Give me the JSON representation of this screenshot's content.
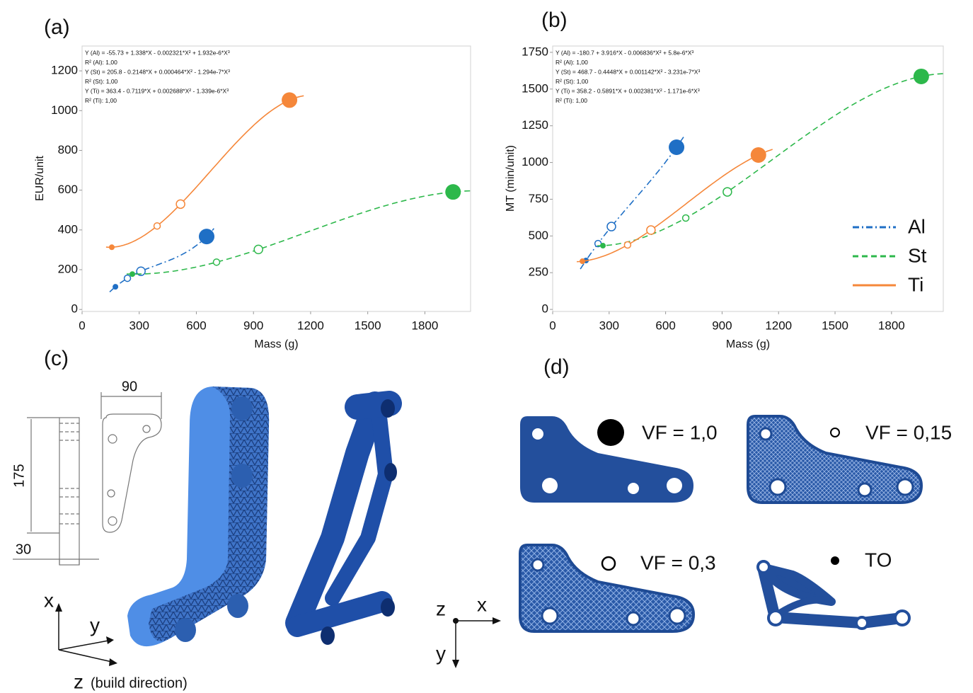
{
  "chart_data": [
    {
      "type": "scatter",
      "title": "(a)",
      "x_label": "Mass (g)",
      "y_label": "EUR/unit",
      "xlim": [
        0,
        2040
      ],
      "ylim": [
        -10,
        1325
      ],
      "xticks": [
        0,
        300,
        600,
        900,
        1200,
        1500,
        1800
      ],
      "yticks": [
        0,
        200,
        400,
        600,
        800,
        1000,
        1200
      ],
      "legend": false,
      "annotations": [
        "Y (Al) = -55.73 + 1.338*X - 0.002321*X² + 1.932e-6*X³",
        "R² (Al): 1,00",
        "Y (St) = 205.8 - 0.2148*X + 0.000464*X² - 1.294e-7*X³",
        "R² (St): 1,00",
        "Y (Ti) = 363.4 - 0.7119*X + 0.002688*X² - 1.339e-6*X³",
        "R² (Ti): 1,00"
      ],
      "series": [
        {
          "name": "Al",
          "color": "#1f6fc5",
          "line_style": "dashdot",
          "x": [
            175,
            238,
            309,
            654
          ],
          "values": [
            114,
            157,
            192,
            367
          ]
        },
        {
          "name": "St",
          "color": "#2db84b",
          "line_style": "dashed",
          "x": [
            264,
            706,
            926,
            1948
          ],
          "values": [
            178,
            238,
            302,
            591
          ]
        },
        {
          "name": "Ti",
          "color": "#f5873a",
          "line_style": "solid",
          "x": [
            156,
            394,
            517,
            1089
          ],
          "values": [
            313,
            420,
            530,
            1053
          ]
        }
      ]
    },
    {
      "type": "scatter",
      "title": "(b)",
      "x_label": "Mass (g)",
      "y_label": "MT (min/unit)",
      "xlim": [
        0,
        2075
      ],
      "ylim": [
        -14,
        1793
      ],
      "xticks": [
        0,
        300,
        600,
        900,
        1200,
        1500,
        1800
      ],
      "yticks": [
        0,
        250,
        500,
        750,
        1000,
        1250,
        1500,
        1750
      ],
      "legend": "lower right",
      "annotations": [
        "Y (Al) = -180.7 + 3.916*X - 0.006836*X² + 5.8e-6*X³",
        "R² (Al): 1,00",
        "Y (St) = 468.7 - 0.4448*X + 0.001142*X² - 3.231e-7*X³",
        "R² (St): 1,00",
        "Y (Ti) = 358.2 - 0.5891*X + 0.002381*X² - 1.171e-6*X³",
        "R² (Ti): 1,00"
      ],
      "series": [
        {
          "name": "Al",
          "color": "#1f6fc5",
          "line_style": "dashdot",
          "x": [
            177,
            241,
            312,
            658
          ],
          "values": [
            333,
            448,
            564,
            1104
          ]
        },
        {
          "name": "St",
          "color": "#2db84b",
          "line_style": "dashed",
          "x": [
            267,
            707,
            928,
            1958
          ],
          "values": [
            434,
            622,
            800,
            1586
          ]
        },
        {
          "name": "Ti",
          "color": "#f5873a",
          "line_style": "solid",
          "x": [
            158,
            398,
            522,
            1093
          ],
          "values": [
            328,
            439,
            540,
            1051
          ]
        }
      ]
    }
  ],
  "panel_c": {
    "label": "(c)",
    "dimensions": [
      90,
      175,
      30
    ],
    "axes": {
      "x": "x",
      "y": "y",
      "z": "z",
      "z_note": "(build direction)"
    }
  },
  "panel_d": {
    "label": "(d)",
    "variants": [
      "VF = 1,0",
      "VF = 0,15",
      "VF = 0,3",
      "TO"
    ],
    "axes": {
      "z": "z",
      "x": "x",
      "y": "y"
    }
  }
}
